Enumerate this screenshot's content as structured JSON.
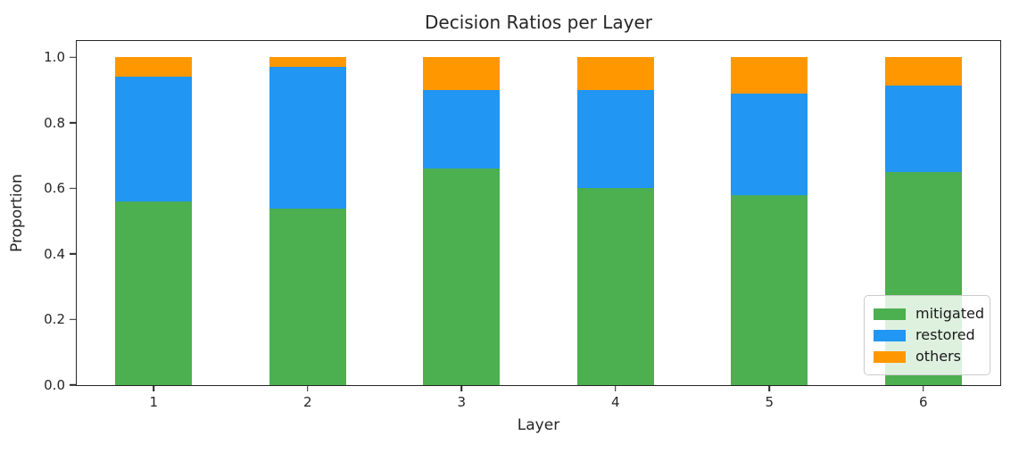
{
  "figure": {
    "background": "#ffffff",
    "spine_color": "#262626",
    "text_color": "#262626"
  },
  "chart_data": {
    "type": "bar",
    "stacked": true,
    "title": "Decision Ratios per Layer",
    "xlabel": "Layer",
    "ylabel": "Proportion",
    "categories": [
      "1",
      "2",
      "3",
      "4",
      "5",
      "6"
    ],
    "series": [
      {
        "name": "mitigated",
        "color": "#4caf50",
        "values": [
          0.56,
          0.54,
          0.66,
          0.6,
          0.58,
          0.65
        ]
      },
      {
        "name": "restored",
        "color": "#2196f3",
        "values": [
          0.38,
          0.43,
          0.24,
          0.3,
          0.31,
          0.265
        ]
      },
      {
        "name": "others",
        "color": "#ff9800",
        "values": [
          0.06,
          0.03,
          0.1,
          0.1,
          0.11,
          0.085
        ]
      }
    ],
    "ylim": [
      0,
      1.05
    ],
    "yticks": [
      "0.0",
      "0.2",
      "0.4",
      "0.6",
      "0.8",
      "1.0"
    ],
    "bar_width_fraction": 0.5,
    "grid": false,
    "legend": {
      "position": "lower right",
      "entries": [
        "mitigated",
        "restored",
        "others"
      ]
    }
  }
}
